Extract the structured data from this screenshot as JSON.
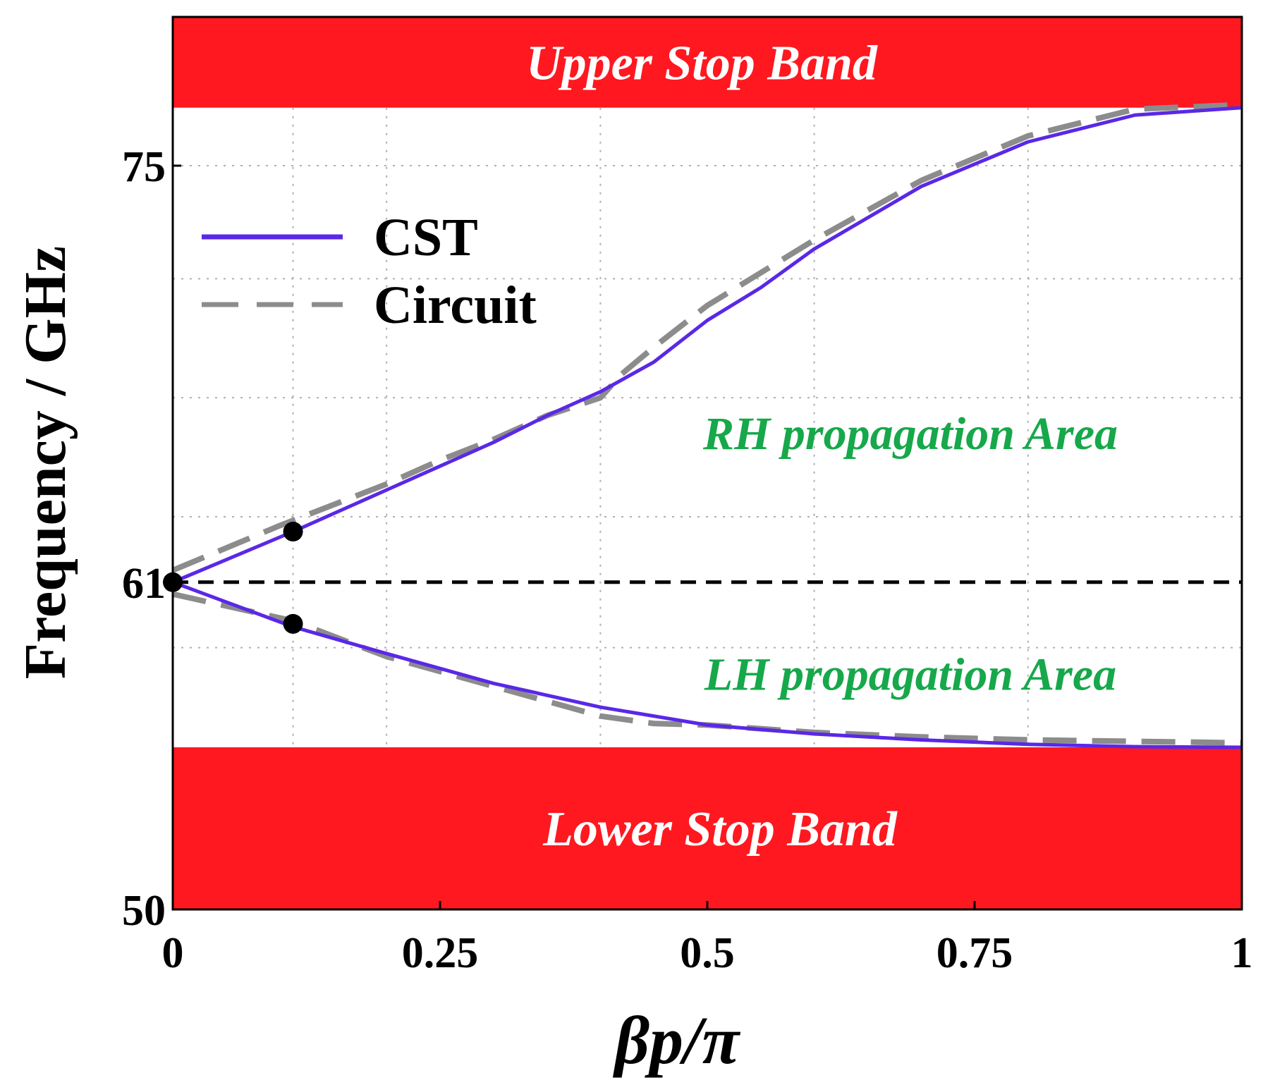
{
  "chart_data": {
    "type": "line",
    "xlabel": "βp/π",
    "ylabel": "Frequency / GHz",
    "xlim": [
      0,
      1
    ],
    "ylim": [
      50,
      80
    ],
    "x_ticks": [
      0,
      0.25,
      0.5,
      0.75,
      1
    ],
    "x_tick_labels": [
      "0",
      "0.25",
      "0.5",
      "0.75",
      "1"
    ],
    "y_ticks": [
      50,
      61,
      75
    ],
    "y_tick_labels": [
      "50",
      "61",
      "75"
    ],
    "x_grid": [
      0.1125,
      0.2,
      0.4,
      0.6,
      0.8
    ],
    "y_grid": [
      58.8,
      63.2,
      67.2,
      71.2,
      75
    ],
    "grid": true,
    "legend_position": "top-left",
    "colors": {
      "cst": "#5a28e6",
      "circuit": "#8c8c8c",
      "stop_band": "#ff1820",
      "area_text": "#16a84a",
      "reference": "#000000"
    },
    "stop_bands": [
      {
        "name": "Upper Stop Band",
        "from": 76.95,
        "to": 80
      },
      {
        "name": "Lower Stop Band",
        "from": 50,
        "to": 55.45
      }
    ],
    "reference_line": {
      "y": 61,
      "style": "dashed"
    },
    "annotations": [
      {
        "text": "RH propagation Area",
        "x": 0.69,
        "y": 66.0
      },
      {
        "text": "LH propagation Area",
        "x": 0.69,
        "y": 57.9
      }
    ],
    "markers": [
      {
        "x": 0,
        "y": 61
      },
      {
        "x": 0.1125,
        "y": 62.7
      },
      {
        "x": 0.1125,
        "y": 59.6
      }
    ],
    "series": [
      {
        "name": "CST",
        "style": "solid",
        "branch": "RH",
        "x": [
          0,
          0.1125,
          0.2,
          0.25,
          0.3,
          0.35,
          0.4,
          0.45,
          0.5,
          0.55,
          0.6,
          0.7,
          0.8,
          0.9,
          1.0
        ],
        "y": [
          61.0,
          62.7,
          64.1,
          64.9,
          65.7,
          66.6,
          67.4,
          68.4,
          69.8,
          70.9,
          72.2,
          74.3,
          75.8,
          76.7,
          76.95
        ]
      },
      {
        "name": "Circuit",
        "style": "dashed",
        "branch": "RH",
        "x": [
          0,
          0.1,
          0.2,
          0.25,
          0.3,
          0.35,
          0.4,
          0.42,
          0.45,
          0.5,
          0.6,
          0.7,
          0.8,
          0.9,
          1.0
        ],
        "y": [
          61.4,
          62.9,
          64.3,
          65.1,
          65.8,
          66.6,
          67.2,
          68.0,
          68.9,
          70.3,
          72.5,
          74.5,
          76.0,
          76.9,
          77.05
        ]
      },
      {
        "name": "CST",
        "style": "solid",
        "branch": "LH",
        "x": [
          0,
          0.1125,
          0.2,
          0.3,
          0.4,
          0.5,
          0.6,
          0.7,
          0.8,
          0.9,
          1.0
        ],
        "y": [
          61.0,
          59.5,
          58.6,
          57.6,
          56.8,
          56.2,
          55.9,
          55.7,
          55.55,
          55.47,
          55.45
        ]
      },
      {
        "name": "Circuit",
        "style": "dashed",
        "branch": "LH",
        "x": [
          0,
          0.1125,
          0.2,
          0.3,
          0.4,
          0.45,
          0.5,
          0.6,
          0.7,
          0.8,
          0.9,
          1.0
        ],
        "y": [
          60.6,
          59.7,
          58.5,
          57.5,
          56.5,
          56.25,
          56.2,
          55.95,
          55.8,
          55.7,
          55.65,
          55.6
        ]
      }
    ]
  }
}
